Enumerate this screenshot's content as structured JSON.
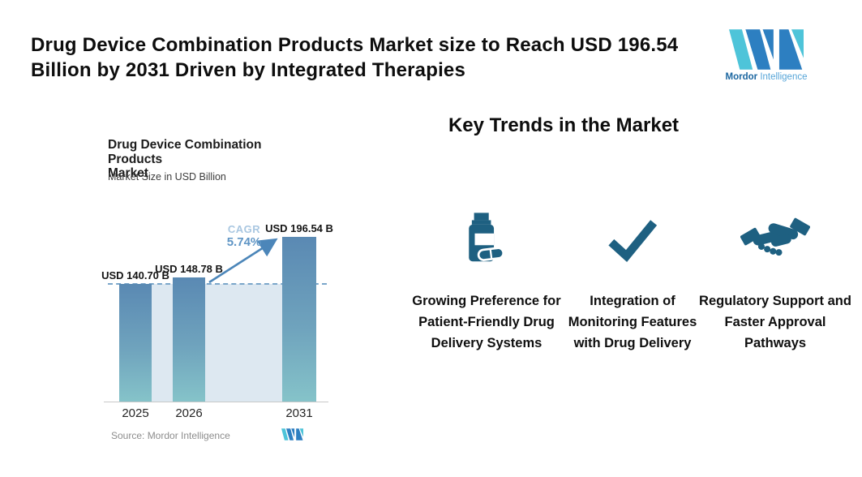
{
  "header": {
    "title_line1": "Drug Device Combination Products Market size to Reach USD 196.54",
    "title_line2": "Billion by 2031 Driven by Integrated Therapies",
    "brand_bold": "Mordor",
    "brand_light": "Intelligence"
  },
  "chart": {
    "title_line1": "Drug Device Combination Products",
    "title_line2": "Market",
    "subtitle": "Market Size in USD Billion",
    "cagr_label": "CAGR",
    "cagr_value": "5.74%",
    "source": "Source: Mordor Intelligence"
  },
  "chart_data": {
    "type": "bar",
    "title": "Drug Device Combination Products Market",
    "subtitle": "Market Size in USD Billion",
    "categories": [
      "2025",
      "2026",
      "2031"
    ],
    "values": [
      140.7,
      148.78,
      196.54
    ],
    "bar_labels": [
      "USD 140.70 B",
      "USD 148.78 B",
      "USD 196.54 B"
    ],
    "ylabel": "Market Size in USD Billion",
    "ylim": [
      0,
      210
    ],
    "grid": false,
    "annotations": {
      "cagr": "CAGR 5.74%",
      "reference_line": "horizontal dashed line at 2025 market level (USD 140.70 B)"
    }
  },
  "trends": {
    "heading": "Key Trends in the Market",
    "items": [
      {
        "icon": "pill-bottle-icon",
        "label": "Growing Preference for Patient-Friendly Drug Delivery Systems"
      },
      {
        "icon": "checkmark-icon",
        "label": "Integration of Monitoring Features with Drug Delivery"
      },
      {
        "icon": "handshake-icon",
        "label": "Regulatory Support and Faster Approval Pathways"
      }
    ]
  },
  "colors": {
    "bar_top": "#5a89b3",
    "bar_bottom": "#85c3c9",
    "shade_area": "#dde8f1",
    "dashed_line": "#7aa6ca",
    "arrow": "#4c86b9",
    "cagr_label": "#a9c7e1",
    "cagr_value": "#5f95c5",
    "trend_icon": "#1e6081",
    "brand_blue": "#2d7fc1",
    "brand_teal": "#4ec4d9",
    "brand_text_dark": "#1b66a0",
    "brand_text_light": "#56a5d8",
    "source_text": "#8d8d8d"
  }
}
